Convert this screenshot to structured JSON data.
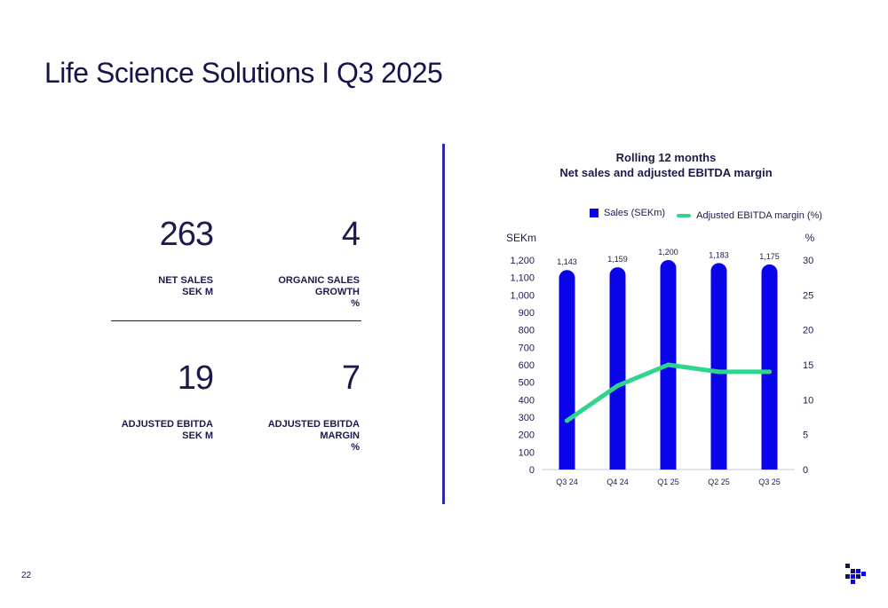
{
  "page": {
    "title": "Life Science Solutions I Q3 2025",
    "page_number": "22"
  },
  "kpis": [
    {
      "value": "263",
      "label": [
        "NET SALES",
        "SEK m"
      ]
    },
    {
      "value": "4",
      "label": [
        "ORGANIC SALES",
        "GROWTH",
        "%"
      ]
    },
    {
      "value": "19",
      "label": [
        "ADJUSTED EBITDA",
        "SEK m"
      ]
    },
    {
      "value": "7",
      "label": [
        "ADJUSTED EBITDA",
        "MARGIN",
        "%"
      ]
    }
  ],
  "colors": {
    "bars": "#0a05e8",
    "line": "#2fd58c",
    "divider": "#2d2ba8",
    "text": "#1b1b4b"
  },
  "chart_data": {
    "type": "bar",
    "title": [
      "Rolling 12 months",
      "Net sales and adjusted EBITDA margin"
    ],
    "categories": [
      "Q3 24",
      "Q4 24",
      "Q1 25",
      "Q2 25",
      "Q3 25"
    ],
    "series": [
      {
        "name": "Sales (SEKm)",
        "type": "bar",
        "axis": "left",
        "values": [
          1143,
          1159,
          1200,
          1183,
          1175
        ],
        "labels": [
          "1,143",
          "1,159",
          "1,200",
          "1,183",
          "1,175"
        ]
      },
      {
        "name": "Adjusted EBITDA margin (%)",
        "type": "line",
        "axis": "right",
        "values": [
          7,
          12,
          15,
          14,
          14
        ]
      }
    ],
    "ylabel_left": "SEKm",
    "ylabel_right": "%",
    "ylim_left": [
      0,
      1200
    ],
    "ylim_right": [
      0,
      30
    ],
    "yticks_left": [
      "0",
      "100",
      "200",
      "300",
      "400",
      "500",
      "600",
      "700",
      "800",
      "900",
      "1,000",
      "1,100",
      "1,200"
    ],
    "yticks_right": [
      "0",
      "5",
      "10",
      "15",
      "20",
      "25",
      "30"
    ],
    "legend_position": "top",
    "grid": false
  }
}
